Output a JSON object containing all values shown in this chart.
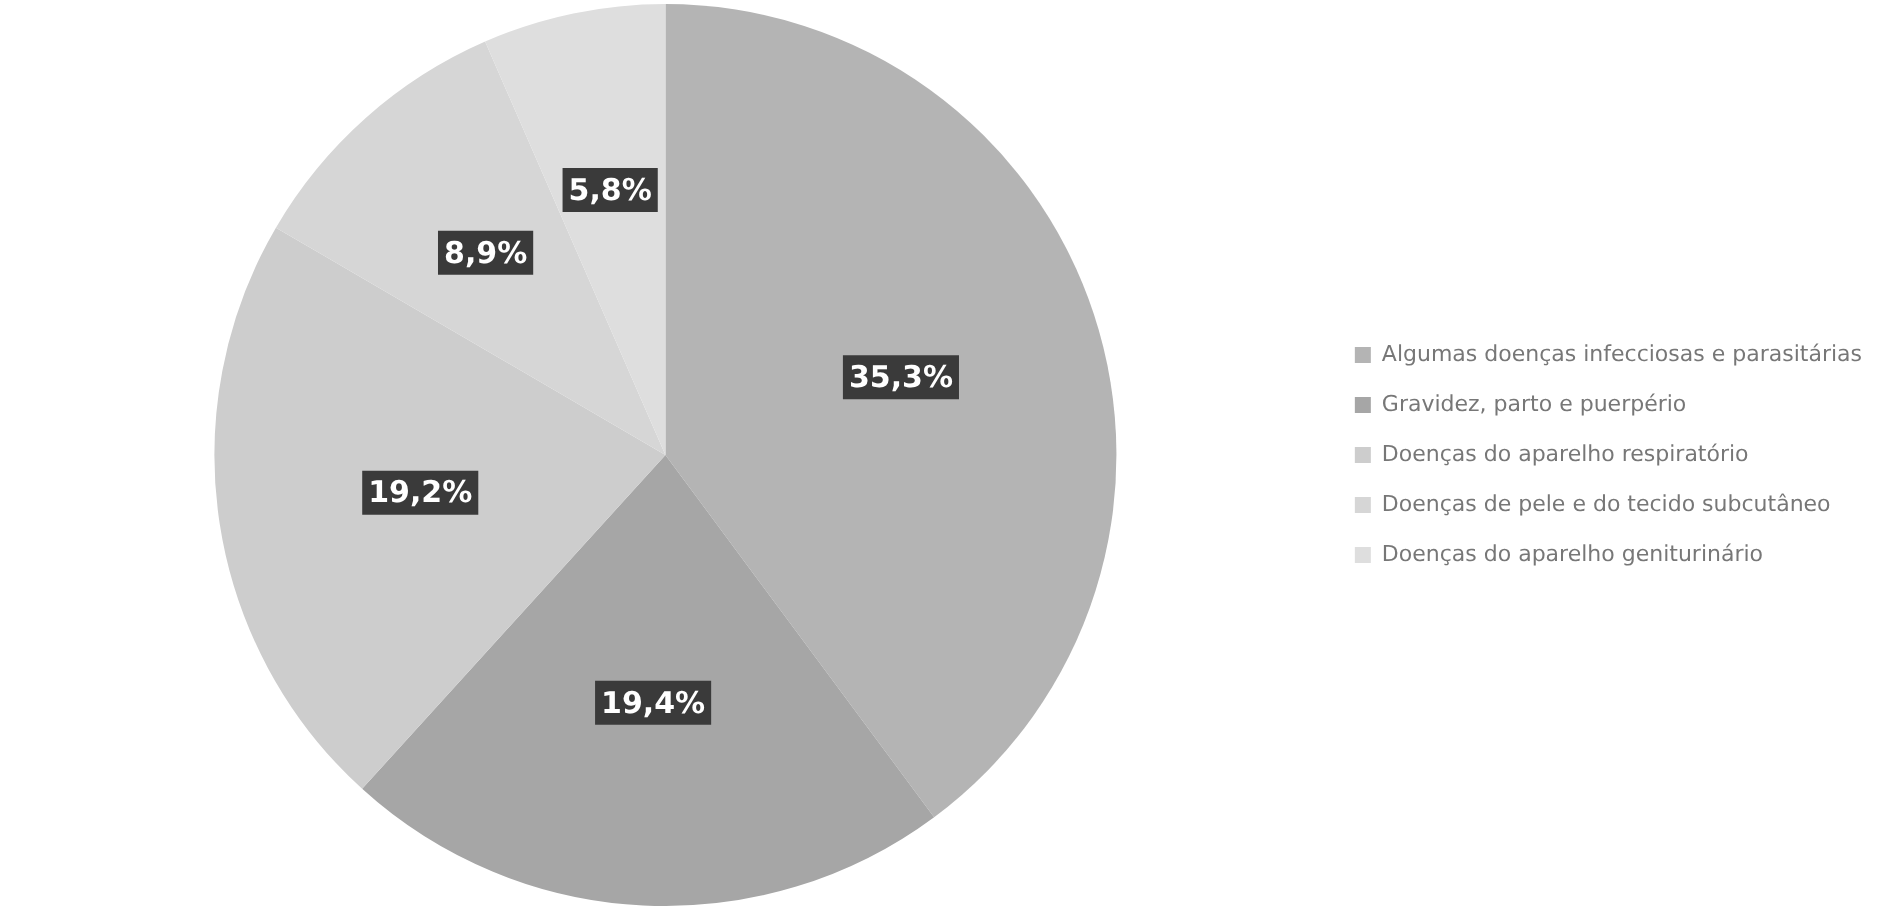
{
  "chart_data": {
    "type": "pie",
    "categories": [
      "Algumas doenças infecciosas e parasitárias",
      "Gravidez, parto e puerpério",
      "Doenças do aparelho respiratório",
      "Doenças de pele e do tecido subcutâneo",
      "Doenças do aparelho geniturinário"
    ],
    "values": [
      35.3,
      19.4,
      19.2,
      8.9,
      5.8
    ],
    "colors": [
      "#b4b4b4",
      "#a6a6a6",
      "#cdcdcd",
      "#d6d6d6",
      "#dedede"
    ],
    "value_labels": [
      "35,3%",
      "19,4%",
      "19,2%",
      "8,9%",
      "5,8%"
    ],
    "legend": "right"
  }
}
